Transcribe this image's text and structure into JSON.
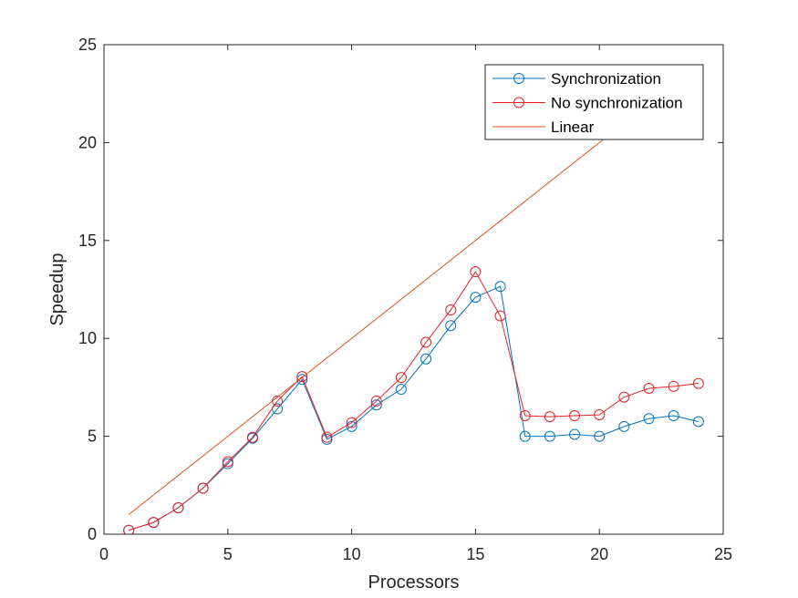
{
  "chart_data": {
    "type": "line",
    "title": "",
    "xlabel": "Processors",
    "ylabel": "Speedup",
    "xlim": [
      0,
      25
    ],
    "ylim": [
      0,
      25
    ],
    "xticks": [
      0,
      5,
      10,
      15,
      20,
      25
    ],
    "yticks": [
      0,
      5,
      10,
      15,
      20,
      25
    ],
    "grid": false,
    "legend_position": "top-right",
    "series": [
      {
        "name": "Synchronization",
        "color": "#0072BD",
        "marker": "circle",
        "x": [
          1,
          2,
          3,
          4,
          5,
          6,
          7,
          8,
          9,
          10,
          11,
          12,
          13,
          14,
          15,
          16,
          17,
          18,
          19,
          20,
          21,
          22,
          23,
          24
        ],
        "values": [
          0.2,
          0.6,
          1.35,
          2.35,
          3.6,
          4.9,
          6.4,
          7.9,
          4.85,
          5.5,
          6.6,
          7.4,
          8.95,
          10.65,
          12.1,
          12.65,
          5.0,
          5.0,
          5.1,
          5.0,
          5.5,
          5.9,
          6.05,
          5.75
        ]
      },
      {
        "name": "No synchronization",
        "color": "#E8202A",
        "marker": "circle",
        "x": [
          1,
          2,
          3,
          4,
          5,
          6,
          7,
          8,
          9,
          10,
          11,
          12,
          13,
          14,
          15,
          16,
          17,
          18,
          19,
          20,
          21,
          22,
          23,
          24
        ],
        "values": [
          0.2,
          0.6,
          1.35,
          2.35,
          3.7,
          4.95,
          6.8,
          8.05,
          4.95,
          5.7,
          6.8,
          8.0,
          9.8,
          11.45,
          13.4,
          11.15,
          6.05,
          6.0,
          6.05,
          6.1,
          7.0,
          7.45,
          7.55,
          7.7
        ]
      },
      {
        "name": "Linear",
        "color": "#D95319",
        "marker": "none",
        "x": [
          1,
          24
        ],
        "values": [
          1,
          24
        ]
      }
    ]
  }
}
